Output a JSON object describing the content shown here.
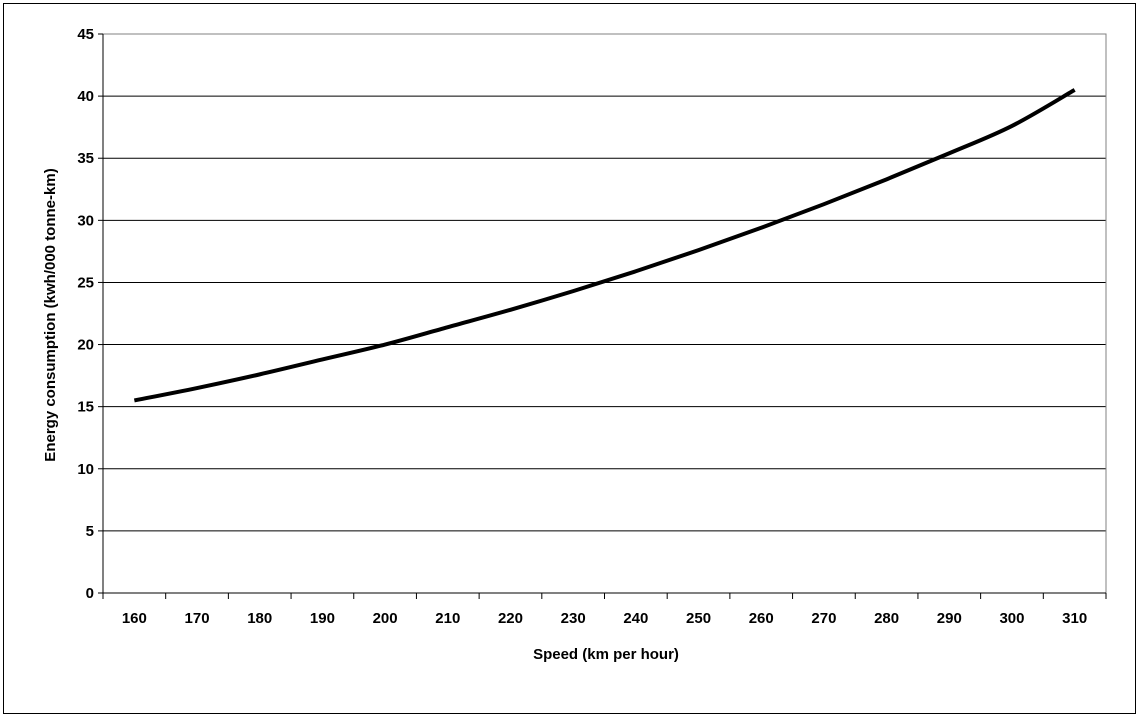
{
  "chart_data": {
    "type": "line",
    "title": "",
    "xlabel": "Speed (km per hour)",
    "ylabel": "Energy consumption (kwh/000 tonne-km)",
    "x_categories": [
      "160",
      "170",
      "180",
      "190",
      "200",
      "210",
      "220",
      "230",
      "240",
      "250",
      "260",
      "270",
      "280",
      "290",
      "300",
      "310"
    ],
    "ylim": [
      0,
      45
    ],
    "y_ticks": [
      "0",
      "5",
      "10",
      "15",
      "20",
      "25",
      "30",
      "35",
      "40",
      "45"
    ],
    "grid": "horizontal",
    "legend": "none",
    "series": [
      {
        "color": "#000000",
        "x": [
          "160",
          "170",
          "180",
          "190",
          "200",
          "210",
          "220",
          "230",
          "240",
          "250",
          "260",
          "270",
          "280",
          "290",
          "300",
          "310"
        ],
        "y": [
          15.5,
          16.5,
          17.6,
          18.8,
          20.0,
          21.4,
          22.8,
          24.3,
          25.9,
          27.6,
          29.4,
          31.3,
          33.3,
          35.4,
          37.6,
          40.5
        ]
      }
    ]
  }
}
